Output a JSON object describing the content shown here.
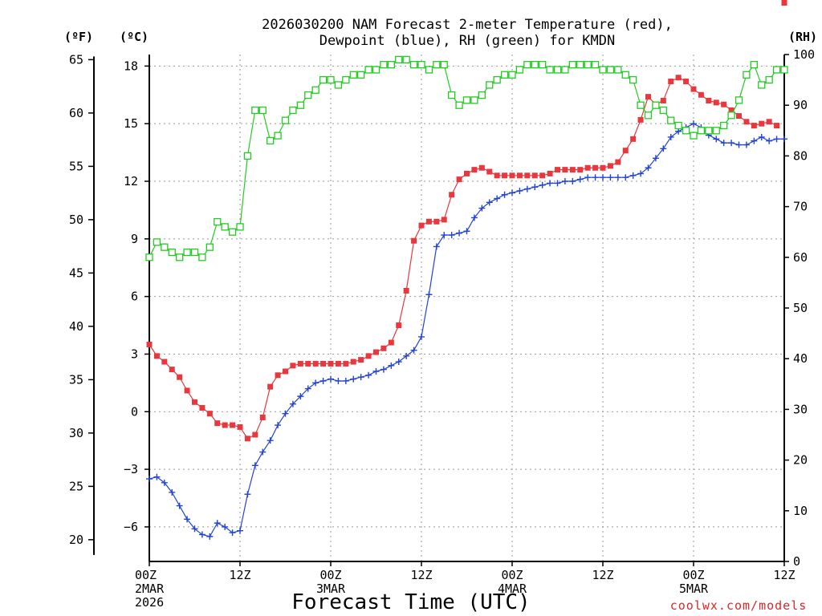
{
  "chart_data": {
    "type": "line",
    "title_line1": "2026030200 NAM Forecast 2-meter Temperature (red),",
    "title_line2": "Dewpoint (blue), RH (green) for KMDN",
    "xlabel": "Forecast Time (UTC)",
    "credit": "coolwx.com/models",
    "x_range_hours": [
      0,
      84
    ],
    "x_ticks": [
      {
        "h": 0,
        "lines": [
          "00Z",
          "2MAR",
          "2026"
        ]
      },
      {
        "h": 12,
        "lines": [
          "12Z"
        ]
      },
      {
        "h": 24,
        "lines": [
          "00Z",
          "3MAR"
        ]
      },
      {
        "h": 36,
        "lines": [
          "12Z"
        ]
      },
      {
        "h": 48,
        "lines": [
          "00Z",
          "4MAR"
        ]
      },
      {
        "h": 60,
        "lines": [
          "12Z"
        ]
      },
      {
        "h": 72,
        "lines": [
          "00Z",
          "5MAR"
        ]
      },
      {
        "h": 84,
        "lines": [
          "12Z"
        ]
      }
    ],
    "y_celsius": {
      "label": "(ºC)",
      "range": [
        -7.8,
        18.6
      ],
      "ticks": [
        "18",
        "15",
        "12",
        "9",
        "6",
        "3",
        "0",
        "−3",
        "−6"
      ],
      "tick_values": [
        18,
        15,
        12,
        9,
        6,
        3,
        0,
        -3,
        -6
      ]
    },
    "y_fahrenheit": {
      "label": "(ºF)",
      "ticks": [
        "65",
        "60",
        "55",
        "50",
        "45",
        "40",
        "35",
        "30",
        "25",
        "20"
      ],
      "tick_values": [
        65,
        60,
        55,
        50,
        45,
        40,
        35,
        30,
        25,
        20
      ]
    },
    "y_rh": {
      "label": "(RH)",
      "range": [
        0,
        100
      ],
      "ticks": [
        "100",
        "90",
        "80",
        "70",
        "60",
        "50",
        "40",
        "30",
        "20",
        "10",
        "0"
      ],
      "tick_values": [
        100,
        90,
        80,
        70,
        60,
        50,
        40,
        30,
        20,
        10,
        0
      ]
    },
    "hours": [
      0,
      1,
      2,
      3,
      4,
      5,
      6,
      7,
      8,
      9,
      10,
      11,
      12,
      13,
      14,
      15,
      16,
      17,
      18,
      19,
      20,
      21,
      22,
      23,
      24,
      25,
      26,
      27,
      28,
      29,
      30,
      31,
      32,
      33,
      34,
      35,
      36,
      37,
      38,
      39,
      40,
      41,
      42,
      43,
      44,
      45,
      46,
      47,
      48,
      49,
      50,
      51,
      52,
      53,
      54,
      55,
      56,
      57,
      58,
      59,
      60,
      61,
      62,
      63,
      64,
      65,
      66,
      67,
      68,
      69,
      70,
      71,
      72,
      73,
      74,
      75,
      76,
      77,
      78,
      79,
      80,
      81,
      82,
      83,
      84
    ],
    "series": [
      {
        "name": "Temperature",
        "unit": "C",
        "color": "#e8383d",
        "marker": "filled-square",
        "values": [
          3.5,
          2.9,
          2.6,
          2.2,
          1.8,
          1.1,
          0.5,
          0.2,
          -0.1,
          -0.6,
          -0.7,
          -0.7,
          -0.8,
          -1.4,
          -1.2,
          -0.3,
          1.3,
          1.9,
          2.1,
          2.4,
          2.5,
          2.5,
          2.5,
          2.5,
          2.5,
          2.5,
          2.5,
          2.6,
          2.7,
          2.9,
          3.1,
          3.3,
          3.6,
          4.5,
          6.3,
          8.9,
          9.7,
          9.9,
          9.9,
          10.0,
          11.3,
          12.1,
          12.4,
          12.6,
          12.7,
          12.5,
          12.3,
          12.3,
          12.3,
          12.3,
          12.3,
          12.3,
          12.3,
          12.4,
          12.6,
          12.6,
          12.6,
          12.6,
          12.7,
          12.7,
          12.7,
          12.8,
          13.0,
          13.6,
          14.2,
          15.2,
          16.4,
          16.0,
          16.2,
          17.2,
          17.4,
          17.2,
          16.8,
          16.5,
          16.2,
          16.1,
          16.0,
          15.7,
          15.4,
          15.1,
          14.9,
          15.0,
          15.1,
          14.9
        ],
        "extra": [
          {
            "h": 84,
            "v": 14.9
          }
        ]
      },
      {
        "name": "Dewpoint",
        "unit": "C",
        "color": "#2343d6",
        "marker": "plus",
        "values": [
          -3.5,
          -3.4,
          -3.7,
          -4.2,
          -4.9,
          -5.6,
          -6.1,
          -6.4,
          -6.5,
          -5.8,
          -6.0,
          -6.3,
          -6.2,
          -4.3,
          -2.8,
          -2.1,
          -1.5,
          -0.7,
          -0.1,
          0.4,
          0.8,
          1.2,
          1.5,
          1.6,
          1.7,
          1.6,
          1.6,
          1.7,
          1.8,
          1.9,
          2.1,
          2.2,
          2.4,
          2.6,
          2.9,
          3.2,
          3.9,
          6.1,
          8.6,
          9.2,
          9.2,
          9.3,
          9.4,
          10.1,
          10.6,
          10.9,
          11.1,
          11.3,
          11.4,
          11.5,
          11.6,
          11.7,
          11.8,
          11.9,
          11.9,
          12.0,
          12.0,
          12.1,
          12.2,
          12.2,
          12.2,
          12.2,
          12.2,
          12.2,
          12.3,
          12.4,
          12.7,
          13.2,
          13.7,
          14.3,
          14.6,
          14.8,
          15.0,
          14.8,
          14.4,
          14.2,
          14.0,
          14.0,
          13.9,
          13.9,
          14.1,
          14.3,
          14.1,
          14.2,
          14.2
        ]
      },
      {
        "name": "RH",
        "unit": "%",
        "color": "#22cc22",
        "marker": "open-square",
        "values": [
          60,
          63,
          62,
          61,
          60,
          61,
          61,
          60,
          62,
          67,
          66,
          65,
          66,
          80,
          89,
          89,
          83,
          84,
          87,
          89,
          90,
          92,
          93,
          95,
          95,
          94,
          95,
          96,
          96,
          97,
          97,
          98,
          98,
          99,
          99,
          98,
          98,
          97,
          98,
          98,
          92,
          90,
          91,
          91,
          92,
          94,
          95,
          96,
          96,
          97,
          98,
          98,
          98,
          97,
          97,
          97,
          98,
          98,
          98,
          98,
          97,
          97,
          97,
          96,
          95,
          90,
          88,
          90,
          89,
          87,
          86,
          85,
          84,
          85,
          85,
          85,
          86,
          88,
          91,
          96,
          98,
          94,
          95,
          97,
          97
        ]
      }
    ],
    "legend": "none (colors named in title)"
  }
}
